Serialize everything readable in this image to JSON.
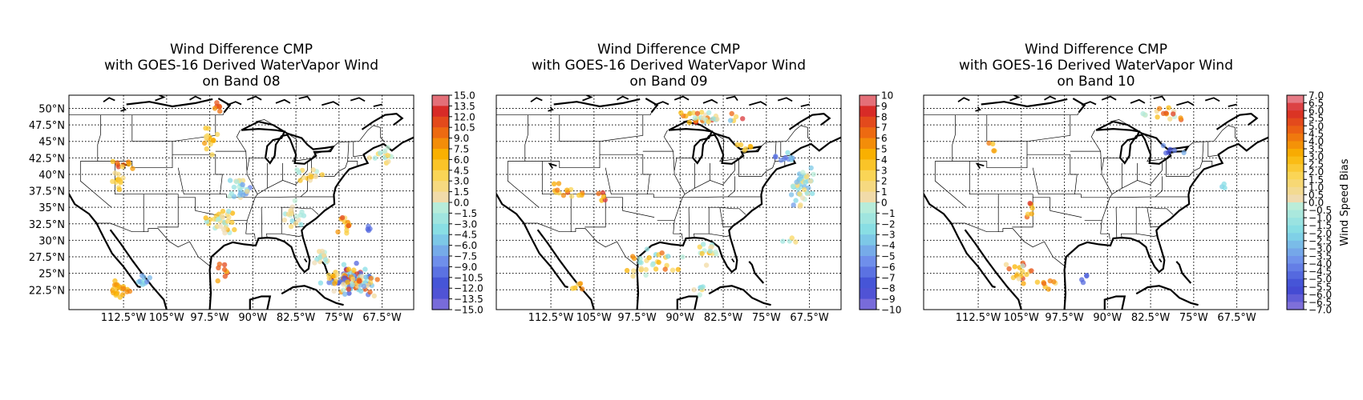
{
  "chart_data": [
    {
      "type": "scatter",
      "title": [
        "Wind Difference CMP",
        "with GOES-16 Derived WaterVapor Wind",
        "on Band 08"
      ],
      "xlabel": "",
      "ylabel": "",
      "xlim": [
        -122,
        -62
      ],
      "ylim": [
        19.5,
        52
      ],
      "xticks": [
        -112.5,
        -105,
        -97.5,
        -90,
        -82.5,
        -75,
        -67.5
      ],
      "xtick_labels": [
        "112.5°W",
        "105°W",
        "97.5°W",
        "90°W",
        "82.5°W",
        "75°W",
        "67.5°W"
      ],
      "yticks": [
        22.5,
        25,
        27.5,
        30,
        32.5,
        35,
        37.5,
        40,
        42.5,
        45,
        47.5,
        50
      ],
      "ytick_labels": [
        "22.5°N",
        "25°N",
        "27.5°N",
        "30°N",
        "32.5°N",
        "35°N",
        "37.5°N",
        "40°N",
        "42.5°N",
        "45°N",
        "47.5°N",
        "50°N"
      ],
      "grid": true,
      "colorbar": {
        "label": "",
        "range": [
          -15,
          15
        ],
        "ticks": [
          15.0,
          13.5,
          12.0,
          10.5,
          9.0,
          7.5,
          6.0,
          4.5,
          3.0,
          1.5,
          0.0,
          -1.5,
          -3.0,
          -4.5,
          -6.0,
          -7.5,
          -9.0,
          -10.5,
          -12.0,
          -13.5,
          -15.0
        ],
        "tick_labels": [
          "15.0",
          "13.5",
          "12.0",
          "10.5",
          "9.0",
          "7.5",
          "6.0",
          "4.5",
          "3.0",
          "1.5",
          "0.0",
          "−1.5",
          "−3.0",
          "−4.5",
          "−6.0",
          "−7.5",
          "−9.0",
          "−10.5",
          "−12.0",
          "−13.5",
          "−15.0"
        ]
      },
      "point_clusters": [
        {
          "lon": -113.5,
          "lat": 39.0,
          "spread": [
            1.5,
            1.8
          ],
          "count": 14,
          "value_range": [
            1.0,
            7.5
          ]
        },
        {
          "lon": -112.5,
          "lat": 41.5,
          "spread": [
            2.5,
            1.0
          ],
          "count": 10,
          "value_range": [
            3.0,
            12.0
          ]
        },
        {
          "lon": -97.5,
          "lat": 45.0,
          "spread": [
            2.0,
            3.0
          ],
          "count": 16,
          "value_range": [
            2.0,
            8.0
          ]
        },
        {
          "lon": -96.0,
          "lat": 50.0,
          "spread": [
            1.0,
            1.5
          ],
          "count": 6,
          "value_range": [
            6.0,
            12.0
          ]
        },
        {
          "lon": -80.0,
          "lat": 40.0,
          "spread": [
            3.0,
            1.5
          ],
          "count": 16,
          "value_range": [
            -3.0,
            7.0
          ]
        },
        {
          "lon": -92.0,
          "lat": 37.5,
          "spread": [
            3.0,
            2.5
          ],
          "count": 26,
          "value_range": [
            -10.0,
            3.0
          ]
        },
        {
          "lon": -95.5,
          "lat": 33.0,
          "spread": [
            3.0,
            2.5
          ],
          "count": 34,
          "value_range": [
            -3.0,
            8.0
          ]
        },
        {
          "lon": -83.0,
          "lat": 34.0,
          "spread": [
            3.0,
            2.5
          ],
          "count": 18,
          "value_range": [
            -4.5,
            3.0
          ]
        },
        {
          "lon": -74.0,
          "lat": 32.5,
          "spread": [
            2.0,
            2.0
          ],
          "count": 14,
          "value_range": [
            2.0,
            12.0
          ]
        },
        {
          "lon": -70.0,
          "lat": 32.0,
          "spread": [
            1.5,
            1.0
          ],
          "count": 4,
          "value_range": [
            -13.0,
            -9.0
          ]
        },
        {
          "lon": -95.0,
          "lat": 25.5,
          "spread": [
            2.0,
            2.0
          ],
          "count": 8,
          "value_range": [
            4.0,
            12.0
          ]
        },
        {
          "lon": -113.0,
          "lat": 22.5,
          "spread": [
            2.5,
            2.0
          ],
          "count": 22,
          "value_range": [
            4.0,
            9.0
          ]
        },
        {
          "lon": -109.0,
          "lat": 24.0,
          "spread": [
            2.0,
            1.5
          ],
          "count": 10,
          "value_range": [
            -10.0,
            -2.0
          ]
        },
        {
          "lon": -73.0,
          "lat": 24.0,
          "spread": [
            6.0,
            3.0
          ],
          "count": 110,
          "value_range": [
            -13.0,
            13.5
          ]
        },
        {
          "lon": -78.0,
          "lat": 27.5,
          "spread": [
            3.0,
            1.5
          ],
          "count": 16,
          "value_range": [
            -3.0,
            2.0
          ]
        },
        {
          "lon": -68.0,
          "lat": 43.0,
          "spread": [
            3.0,
            2.0
          ],
          "count": 14,
          "value_range": [
            -3.0,
            5.0
          ]
        }
      ]
    },
    {
      "type": "scatter",
      "title": [
        "Wind Difference CMP",
        "with GOES-16 Derived WaterVapor Wind",
        "on Band 09"
      ],
      "xlabel": "",
      "ylabel": "",
      "xlim": [
        -122,
        -62
      ],
      "ylim": [
        19.5,
        52
      ],
      "xticks": [
        -112.5,
        -105,
        -97.5,
        -90,
        -82.5,
        -75,
        -67.5
      ],
      "xtick_labels": [
        "112.5°W",
        "105°W",
        "97.5°W",
        "90°W",
        "82.5°W",
        "75°W",
        "67.5°W"
      ],
      "yticks": [
        22.5,
        25,
        27.5,
        30,
        32.5,
        35,
        37.5,
        40,
        42.5,
        45,
        47.5,
        50
      ],
      "ytick_labels": [],
      "grid": true,
      "colorbar": {
        "label": "",
        "range": [
          -10,
          10
        ],
        "ticks": [
          10,
          9,
          8,
          7,
          6,
          5,
          4,
          3,
          2,
          1,
          0,
          -1,
          -2,
          -3,
          -4,
          -5,
          -6,
          -7,
          -8,
          -9,
          -10
        ],
        "tick_labels": [
          "10",
          "9",
          "8",
          "7",
          "6",
          "5",
          "4",
          "3",
          "2",
          "1",
          "0",
          "−1",
          "−2",
          "−3",
          "−4",
          "−5",
          "−6",
          "−7",
          "−8",
          "−9",
          "−10"
        ]
      },
      "point_clusters": [
        {
          "lon": -85.0,
          "lat": 48.5,
          "spread": [
            8.0,
            2.0
          ],
          "count": 36,
          "value_range": [
            -4.0,
            9.0
          ]
        },
        {
          "lon": -68.5,
          "lat": 38.0,
          "spread": [
            3.0,
            3.5
          ],
          "count": 48,
          "value_range": [
            -5.0,
            2.0
          ]
        },
        {
          "lon": -72.0,
          "lat": 42.5,
          "spread": [
            3.0,
            1.5
          ],
          "count": 10,
          "value_range": [
            -7.0,
            -2.0
          ]
        },
        {
          "lon": -78.5,
          "lat": 44.0,
          "spread": [
            2.0,
            1.0
          ],
          "count": 6,
          "value_range": [
            1.0,
            5.0
          ]
        },
        {
          "lon": -110.0,
          "lat": 37.5,
          "spread": [
            5.0,
            2.0
          ],
          "count": 14,
          "value_range": [
            2.0,
            8.0
          ]
        },
        {
          "lon": -103.0,
          "lat": 36.5,
          "spread": [
            1.5,
            1.5
          ],
          "count": 5,
          "value_range": [
            4.0,
            9.0
          ]
        },
        {
          "lon": -95.0,
          "lat": 26.5,
          "spread": [
            7.0,
            2.5
          ],
          "count": 30,
          "value_range": [
            -3.0,
            7.0
          ]
        },
        {
          "lon": -85.5,
          "lat": 28.0,
          "spread": [
            3.0,
            2.0
          ],
          "count": 14,
          "value_range": [
            -2.0,
            6.0
          ]
        },
        {
          "lon": -86.0,
          "lat": 22.5,
          "spread": [
            2.0,
            1.5
          ],
          "count": 6,
          "value_range": [
            -4.0,
            3.0
          ]
        },
        {
          "lon": -71.0,
          "lat": 30.0,
          "spread": [
            2.0,
            1.5
          ],
          "count": 4,
          "value_range": [
            -2.0,
            3.0
          ]
        },
        {
          "lon": -108.0,
          "lat": 23.0,
          "spread": [
            2.0,
            1.5
          ],
          "count": 6,
          "value_range": [
            1.0,
            6.0
          ]
        }
      ]
    },
    {
      "type": "scatter",
      "title": [
        "Wind Difference CMP",
        "with GOES-16 Derived WaterVapor Wind",
        "on Band 10"
      ],
      "xlabel": "",
      "ylabel": "",
      "xlim": [
        -122,
        -62
      ],
      "ylim": [
        19.5,
        52
      ],
      "xticks": [
        -112.5,
        -105,
        -97.5,
        -90,
        -82.5,
        -75,
        -67.5
      ],
      "xtick_labels": [
        "112.5°W",
        "105°W",
        "97.5°W",
        "90°W",
        "82.5°W",
        "75°W",
        "67.5°W"
      ],
      "yticks": [
        22.5,
        25,
        27.5,
        30,
        32.5,
        35,
        37.5,
        40,
        42.5,
        45,
        47.5,
        50
      ],
      "ytick_labels": [],
      "grid": true,
      "colorbar": {
        "label": "Wind Speed Bias",
        "range": [
          -7,
          7
        ],
        "ticks": [
          7.0,
          6.5,
          6.0,
          5.5,
          5.0,
          4.5,
          4.0,
          3.5,
          3.0,
          2.5,
          2.0,
          1.5,
          1.0,
          0.5,
          0.0,
          -0.5,
          -1.0,
          -1.5,
          -2.0,
          -2.5,
          -3.0,
          -3.5,
          -4.0,
          -4.5,
          -5.0,
          -5.5,
          -6.0,
          -6.5,
          -7.0
        ],
        "tick_labels": [
          "7.0",
          "6.5",
          "6.0",
          "5.5",
          "5.0",
          "4.5",
          "4.0",
          "3.5",
          "3.0",
          "2.5",
          "2.0",
          "1.5",
          "1.0",
          "0.5",
          "0.0",
          "−0.5",
          "−1.0",
          "−1.5",
          "−2.0",
          "−2.5",
          "−3.0",
          "−3.5",
          "−4.0",
          "−4.5",
          "−5.0",
          "−5.5",
          "−6.0",
          "−6.5",
          "−7.0"
        ]
      },
      "point_clusters": [
        {
          "lon": -80.0,
          "lat": 49.0,
          "spread": [
            6.0,
            1.5
          ],
          "count": 16,
          "value_range": [
            -1.0,
            6.0
          ]
        },
        {
          "lon": -79.0,
          "lat": 43.5,
          "spread": [
            3.0,
            1.0
          ],
          "count": 6,
          "value_range": [
            -6.0,
            -2.0
          ]
        },
        {
          "lon": -70.0,
          "lat": 38.5,
          "spread": [
            1.0,
            1.0
          ],
          "count": 3,
          "value_range": [
            -3.0,
            -1.0
          ]
        },
        {
          "lon": -103.5,
          "lat": 35.0,
          "spread": [
            1.5,
            2.0
          ],
          "count": 6,
          "value_range": [
            2.0,
            6.5
          ]
        },
        {
          "lon": -105.0,
          "lat": 25.0,
          "spread": [
            3.0,
            3.0
          ],
          "count": 18,
          "value_range": [
            -1.0,
            6.0
          ]
        },
        {
          "lon": -100.0,
          "lat": 23.5,
          "spread": [
            3.0,
            1.5
          ],
          "count": 8,
          "value_range": [
            1.0,
            5.0
          ]
        },
        {
          "lon": -94.0,
          "lat": 24.5,
          "spread": [
            2.0,
            1.5
          ],
          "count": 4,
          "value_range": [
            -6.0,
            -3.0
          ]
        },
        {
          "lon": -110.0,
          "lat": 44.0,
          "spread": [
            2.0,
            1.5
          ],
          "count": 4,
          "value_range": [
            2.0,
            5.0
          ]
        }
      ]
    }
  ]
}
